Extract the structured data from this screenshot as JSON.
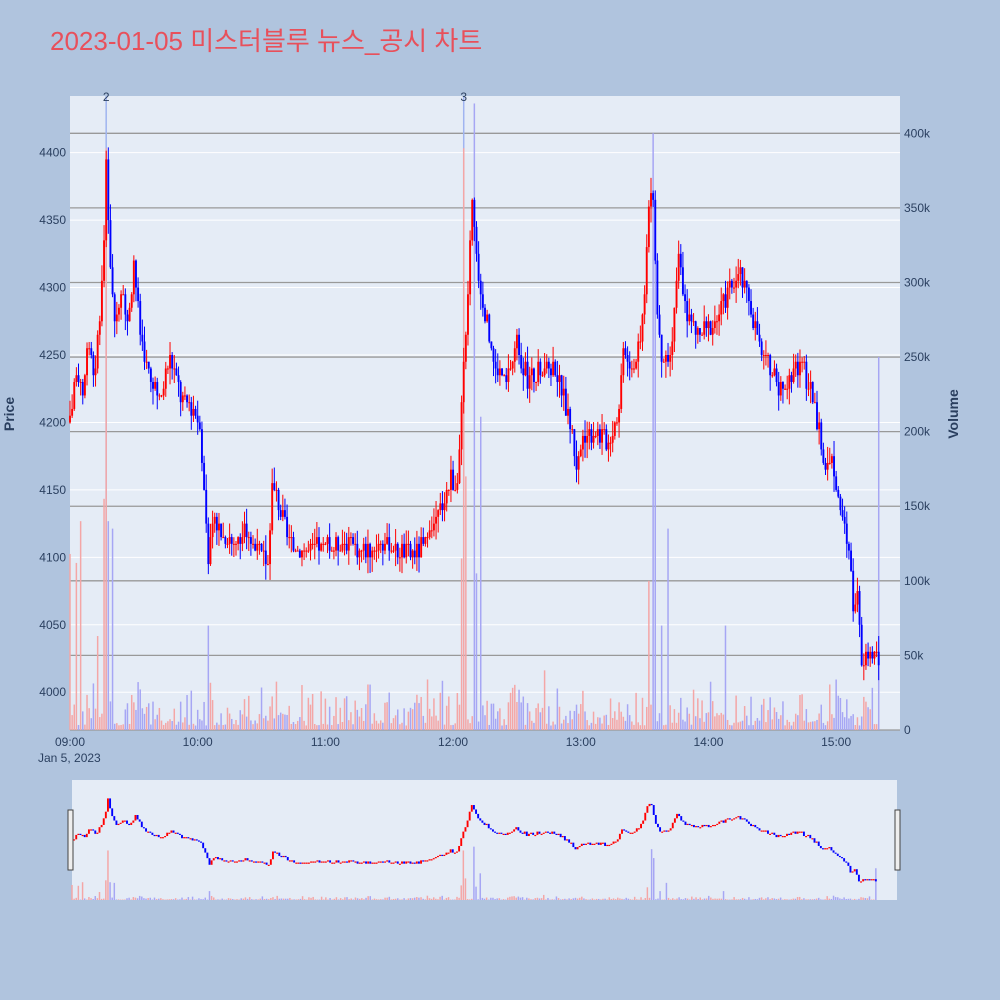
{
  "title": "2023-01-05 미스터블루 뉴스_공시 차트",
  "colors": {
    "background": "#b0c4de",
    "plot_bg": "#e5ecf6",
    "title": "#e8505b",
    "up": "#ff0000",
    "down": "#0000ff",
    "up_volume": "#f4a6a6",
    "down_volume": "#a6a6f4",
    "news_line": "#a0b4f0",
    "grid": "#ffffff",
    "volume_grid": "#999999"
  },
  "chart_data": {
    "type": "candlestick",
    "title": "2023-01-05 미스터블루 뉴스_공시 차트",
    "date_label": "Jan 5, 2023",
    "x_ticks": [
      "09:00",
      "10:00",
      "11:00",
      "12:00",
      "13:00",
      "14:00",
      "15:00"
    ],
    "x_range": [
      "09:00",
      "15:30"
    ],
    "price_axis": {
      "label": "Price",
      "range": [
        3972,
        4442
      ],
      "ticks": [
        4000,
        4050,
        4100,
        4150,
        4200,
        4250,
        4300,
        4350,
        4400
      ]
    },
    "volume_axis": {
      "label": "Volume",
      "range": [
        0,
        425000
      ],
      "ticks": [
        0,
        50000,
        100000,
        150000,
        200000,
        250000,
        300000,
        350000,
        400000
      ],
      "tick_labels": [
        "0",
        "50k",
        "100k",
        "150k",
        "200k",
        "250k",
        "300k",
        "350k",
        "400k"
      ]
    },
    "news_markers": [
      {
        "label": "2",
        "time": "09:17"
      },
      {
        "label": "3",
        "time": "12:05"
      }
    ],
    "price_keypoints": [
      [
        "09:00",
        4200
      ],
      [
        "09:03",
        4240
      ],
      [
        "09:06",
        4220
      ],
      [
        "09:09",
        4260
      ],
      [
        "09:12",
        4235
      ],
      [
        "09:15",
        4300
      ],
      [
        "09:16",
        4340
      ],
      [
        "09:17",
        4390
      ],
      [
        "09:19",
        4320
      ],
      [
        "09:21",
        4270
      ],
      [
        "09:24",
        4300
      ],
      [
        "09:27",
        4270
      ],
      [
        "09:30",
        4320
      ],
      [
        "09:33",
        4265
      ],
      [
        "09:38",
        4230
      ],
      [
        "09:42",
        4215
      ],
      [
        "09:47",
        4250
      ],
      [
        "09:52",
        4220
      ],
      [
        "09:58",
        4210
      ],
      [
        "10:01",
        4200
      ],
      [
        "10:03",
        4150
      ],
      [
        "10:05",
        4100
      ],
      [
        "10:08",
        4125
      ],
      [
        "10:13",
        4115
      ],
      [
        "10:18",
        4110
      ],
      [
        "10:23",
        4120
      ],
      [
        "10:28",
        4105
      ],
      [
        "10:33",
        4095
      ],
      [
        "10:35",
        4155
      ],
      [
        "10:38",
        4140
      ],
      [
        "10:43",
        4110
      ],
      [
        "10:48",
        4105
      ],
      [
        "10:58",
        4108
      ],
      [
        "11:08",
        4110
      ],
      [
        "11:18",
        4105
      ],
      [
        "11:28",
        4112
      ],
      [
        "11:38",
        4102
      ],
      [
        "11:48",
        4110
      ],
      [
        "11:55",
        4140
      ],
      [
        "11:59",
        4160
      ],
      [
        "12:02",
        4150
      ],
      [
        "12:05",
        4240
      ],
      [
        "12:07",
        4300
      ],
      [
        "12:09",
        4360
      ],
      [
        "12:11",
        4320
      ],
      [
        "12:15",
        4280
      ],
      [
        "12:20",
        4240
      ],
      [
        "12:25",
        4230
      ],
      [
        "12:30",
        4260
      ],
      [
        "12:35",
        4230
      ],
      [
        "12:42",
        4240
      ],
      [
        "12:48",
        4240
      ],
      [
        "12:55",
        4200
      ],
      [
        "12:58",
        4170
      ],
      [
        "13:02",
        4190
      ],
      [
        "13:08",
        4195
      ],
      [
        "13:13",
        4185
      ],
      [
        "13:18",
        4210
      ],
      [
        "13:20",
        4260
      ],
      [
        "13:24",
        4240
      ],
      [
        "13:28",
        4260
      ],
      [
        "13:30",
        4300
      ],
      [
        "13:32",
        4360
      ],
      [
        "13:34",
        4370
      ],
      [
        "13:36",
        4280
      ],
      [
        "13:38",
        4240
      ],
      [
        "13:42",
        4250
      ],
      [
        "13:46",
        4320
      ],
      [
        "13:50",
        4280
      ],
      [
        "13:55",
        4265
      ],
      [
        "14:00",
        4270
      ],
      [
        "14:05",
        4280
      ],
      [
        "14:10",
        4300
      ],
      [
        "14:15",
        4310
      ],
      [
        "14:20",
        4285
      ],
      [
        "14:25",
        4250
      ],
      [
        "14:30",
        4235
      ],
      [
        "14:35",
        4225
      ],
      [
        "14:40",
        4240
      ],
      [
        "14:45",
        4240
      ],
      [
        "14:50",
        4210
      ],
      [
        "14:53",
        4185
      ],
      [
        "14:55",
        4160
      ],
      [
        "14:58",
        4180
      ],
      [
        "15:00",
        4150
      ],
      [
        "15:03",
        4125
      ],
      [
        "15:06",
        4110
      ],
      [
        "15:08",
        4060
      ],
      [
        "15:10",
        4080
      ],
      [
        "15:12",
        4015
      ],
      [
        "15:15",
        4030
      ],
      [
        "15:20",
        4025
      ]
    ],
    "volume_spikes": [
      {
        "time": "09:00",
        "value": 118000
      },
      {
        "time": "09:03",
        "value": 112000
      },
      {
        "time": "09:05",
        "value": 140000
      },
      {
        "time": "09:13",
        "value": 63000
      },
      {
        "time": "09:16",
        "value": 155000
      },
      {
        "time": "09:17",
        "value": 390000
      },
      {
        "time": "09:18",
        "value": 140000
      },
      {
        "time": "09:20",
        "value": 135000
      },
      {
        "time": "10:05",
        "value": 70000
      },
      {
        "time": "12:04",
        "value": 115000
      },
      {
        "time": "12:05",
        "value": 390000
      },
      {
        "time": "12:06",
        "value": 170000
      },
      {
        "time": "12:10",
        "value": 420000
      },
      {
        "time": "12:11",
        "value": 105000
      },
      {
        "time": "12:13",
        "value": 210000
      },
      {
        "time": "13:32",
        "value": 100000
      },
      {
        "time": "13:34",
        "value": 400000
      },
      {
        "time": "13:35",
        "value": 330000
      },
      {
        "time": "13:38",
        "value": 70000
      },
      {
        "time": "13:41",
        "value": 135000
      },
      {
        "time": "14:08",
        "value": 70000
      },
      {
        "time": "15:20",
        "value": 250000
      }
    ]
  }
}
